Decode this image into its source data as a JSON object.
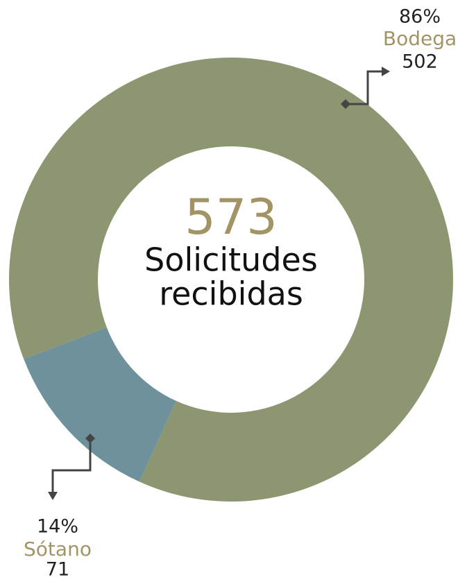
{
  "chart_data": {
    "type": "donut",
    "total": 573,
    "center_label": [
      "Solicitudes",
      "recibidas"
    ],
    "categories": [
      "Bodega",
      "Sótano"
    ],
    "values": [
      502,
      71
    ],
    "shares": [
      86,
      14
    ],
    "share_labels": [
      "86%",
      "14%"
    ],
    "colors": [
      "#8c9772",
      "#6e919b"
    ]
  }
}
